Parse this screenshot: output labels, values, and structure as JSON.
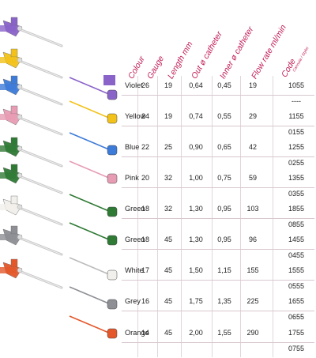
{
  "headers": {
    "colour": "Colour",
    "gauge": "Gauge",
    "length": "Length mm",
    "outer": "Out ø catheter",
    "inner": "Inner ø catheter",
    "flow": "Flow rate ml/min",
    "code": "Code",
    "code_sub": "Cannula / Stylet"
  },
  "rows": [
    {
      "colour": "Violet",
      "gauge": "26",
      "length": "19",
      "outer": "0,64",
      "inner": "0,45",
      "flow": "19",
      "code": "1055",
      "code2": "----",
      "hex": "#8a63c9"
    },
    {
      "colour": "Yellow",
      "gauge": "24",
      "length": "19",
      "outer": "0,74",
      "inner": "0,55",
      "flow": "29",
      "code": "1155",
      "code2": "0155",
      "hex": "#f2c21a"
    },
    {
      "colour": "Blue",
      "gauge": "22",
      "length": "25",
      "outer": "0,90",
      "inner": "0,65",
      "flow": "42",
      "code": "1255",
      "code2": "0255",
      "hex": "#3d7bd8"
    },
    {
      "colour": "Pink",
      "gauge": "20",
      "length": "32",
      "outer": "1,00",
      "inner": "0,75",
      "flow": "59",
      "code": "1355",
      "code2": "0355",
      "hex": "#e79cb4"
    },
    {
      "colour": "Green",
      "gauge": "18",
      "length": "32",
      "outer": "1,30",
      "inner": "0,95",
      "flow": "103",
      "code": "1855",
      "code2": "0855",
      "hex": "#2f7a35"
    },
    {
      "colour": "Green",
      "gauge": "18",
      "length": "45",
      "outer": "1,30",
      "inner": "0,95",
      "flow": "96",
      "code": "1455",
      "code2": "0455",
      "hex": "#2f7a35"
    },
    {
      "colour": "White",
      "gauge": "17",
      "length": "45",
      "outer": "1,50",
      "inner": "1,15",
      "flow": "155",
      "code": "1555",
      "code2": "0555",
      "hex": "#f2f0ec"
    },
    {
      "colour": "Grey",
      "gauge": "16",
      "length": "45",
      "outer": "1,75",
      "inner": "1,35",
      "flow": "225",
      "code": "1655",
      "code2": "0655",
      "hex": "#8d8f94"
    },
    {
      "colour": "Orange",
      "gauge": "14",
      "length": "45",
      "outer": "2,00",
      "inner": "1,55",
      "flow": "290",
      "code": "1755",
      "code2": "0755",
      "hex": "#e4572b"
    }
  ],
  "accent_color": "#c21d58",
  "swatch_color": "#8a63c9"
}
